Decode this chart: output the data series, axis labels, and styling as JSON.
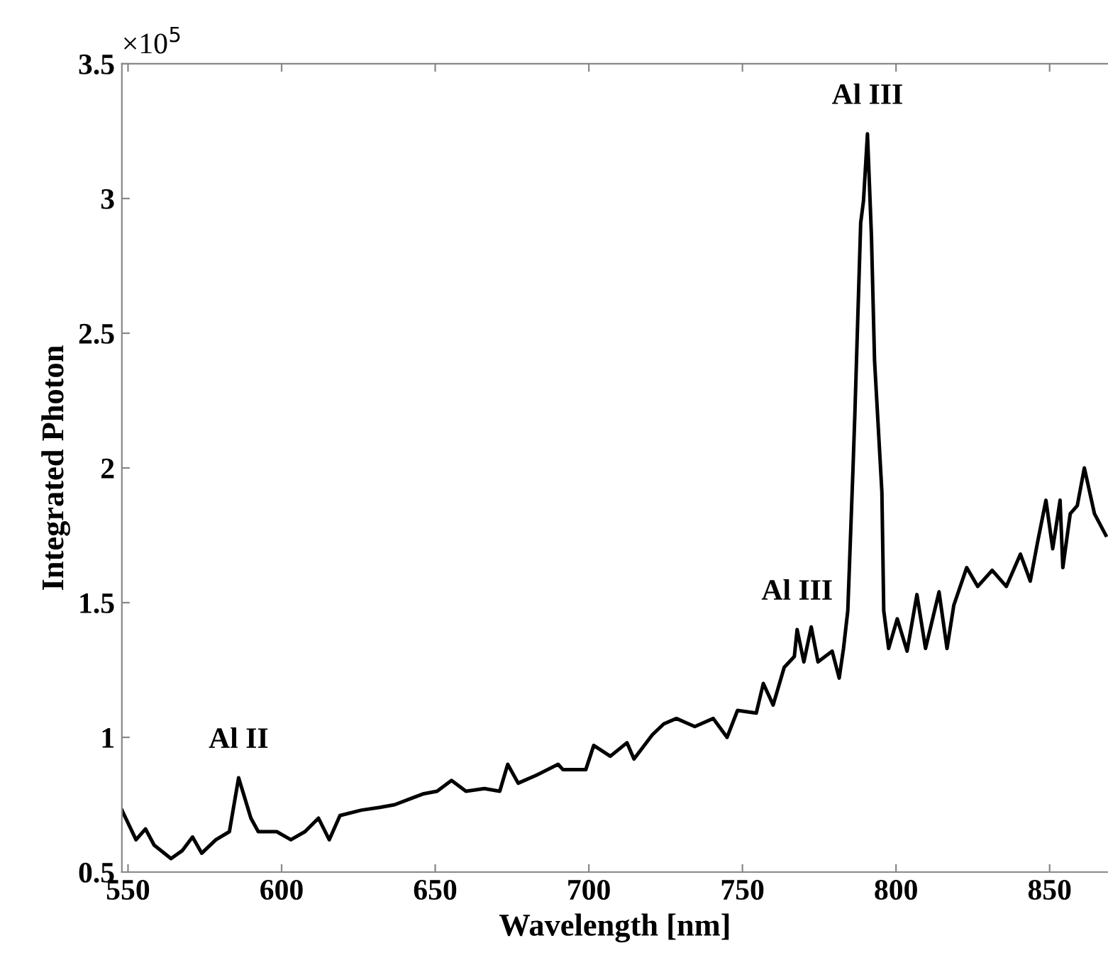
{
  "chart_data": {
    "type": "line",
    "xlabel": "Wavelength [nm]",
    "ylabel": "Integrated Photon",
    "xlim": [
      548,
      869
    ],
    "xticks": [
      550,
      600,
      650,
      700,
      750,
      800,
      850
    ],
    "ylim": [
      0.5,
      3.5
    ],
    "yticks": [
      0.5,
      1,
      1.5,
      2,
      2.5,
      3,
      3.5
    ],
    "grid": false,
    "legend": false,
    "marker": "none",
    "line_style": "solid",
    "annotations": [
      "×10$^{5}$",
      {
        "text": "Al II",
        "x": 586,
        "y": 0.85
      },
      {
        "text": "Al III",
        "x": 767.8,
        "y": 1.4
      },
      {
        "text": "Al III",
        "x": 790.7,
        "y": 3.24
      }
    ],
    "series": [
      {
        "color": "#000000",
        "x": [
          548,
          552.6,
          555.7,
          558.5,
          564,
          567.7,
          571,
          574,
          578.6,
          583,
          586,
          590,
          592.4,
          598.4,
          603,
          607.6,
          612,
          615.5,
          619,
          626,
          632,
          636.8,
          641.4,
          646,
          650.6,
          655.3,
          660,
          666,
          671,
          673.6,
          677,
          683,
          690,
          691.6,
          699,
          701.6,
          707,
          712.4,
          714.7,
          720.7,
          724.4,
          728.5,
          734.5,
          740.5,
          745,
          748.4,
          754.5,
          756.8,
          760,
          763.6,
          766.9,
          767.8,
          770,
          772.4,
          774.6,
          779.2,
          781.5,
          782.9,
          784.3,
          786,
          786.6,
          788.5,
          789.4,
          790.7,
          792,
          793,
          795.4,
          796,
          797.6,
          800.4,
          803.6,
          806.8,
          809.6,
          814,
          816.6,
          818.8,
          823,
          826.6,
          831.3,
          835.9,
          840.5,
          843.7,
          846,
          848.8,
          851,
          853.4,
          854.3,
          856.7,
          859,
          861.3,
          864.6,
          868.3
        ],
        "values": [
          0.73,
          0.62,
          0.66,
          0.6,
          0.55,
          0.58,
          0.63,
          0.57,
          0.62,
          0.65,
          0.85,
          0.7,
          0.65,
          0.65,
          0.62,
          0.65,
          0.7,
          0.62,
          0.71,
          0.73,
          0.74,
          0.75,
          0.77,
          0.79,
          0.8,
          0.84,
          0.8,
          0.81,
          0.8,
          0.9,
          0.83,
          0.86,
          0.9,
          0.88,
          0.88,
          0.97,
          0.93,
          0.98,
          0.92,
          1.01,
          1.05,
          1.07,
          1.04,
          1.07,
          1.0,
          1.1,
          1.09,
          1.2,
          1.12,
          1.26,
          1.3,
          1.4,
          1.28,
          1.41,
          1.28,
          1.32,
          1.22,
          1.33,
          1.47,
          2.0,
          2.2,
          2.91,
          2.99,
          3.24,
          2.86,
          2.4,
          1.91,
          1.47,
          1.33,
          1.44,
          1.32,
          1.53,
          1.33,
          1.54,
          1.33,
          1.49,
          1.63,
          1.56,
          1.62,
          1.56,
          1.68,
          1.58,
          1.72,
          1.88,
          1.7,
          1.88,
          1.63,
          1.83,
          1.86,
          2.0,
          1.83,
          1.75
        ]
      }
    ]
  }
}
